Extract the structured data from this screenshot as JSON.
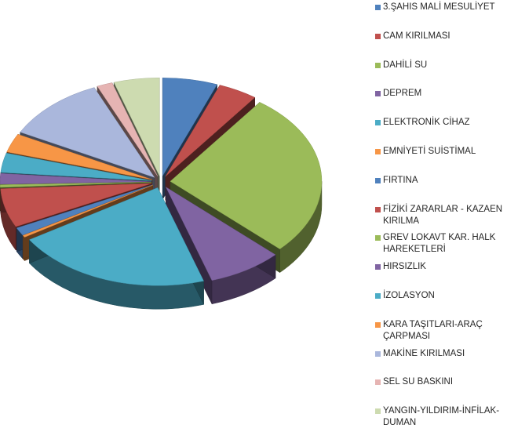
{
  "chart_data": {
    "type": "pie",
    "style": "3d-exploded",
    "categories": [
      "3.ŞAHIS MALİ MESULİYET",
      "CAM KIRILMASI",
      "DAHİLİ SU",
      "DEPREM",
      "ELEKTRONİK CİHAZ",
      "EMNİYETİ SUİSTİMAL",
      "FIRTINA",
      "FİZİKİ ZARARLAR - KAZAEN KIRILMA",
      "GREV LOKAVT KAR. HALK HAREKETLERİ",
      "HIRSIZLIK",
      "İZOLASYON",
      "KARA TAŞITLARI-ARAÇ ÇARPMASI",
      "MAKİNE KIRILMASI",
      "SEL SU BASKINI",
      "YANGIN-YILDIRIM-İNFİLAK-DUMAN"
    ],
    "values": [
      5.3,
      3.8,
      24.5,
      7.2,
      19.0,
      0.3,
      1.2,
      5.8,
      0.4,
      1.6,
      2.9,
      2.8,
      9.8,
      1.5,
      4.4
    ],
    "colors": [
      "#4f81bd",
      "#c0504d",
      "#9bbb59",
      "#8064a2",
      "#4bacc6",
      "#f79646",
      "#4f81bd",
      "#c0504d",
      "#9bbb59",
      "#8064a2",
      "#4bacc6",
      "#f79646",
      "#aab7dc",
      "#e6b4b3",
      "#cddbb0"
    ],
    "legend_position": "right"
  }
}
